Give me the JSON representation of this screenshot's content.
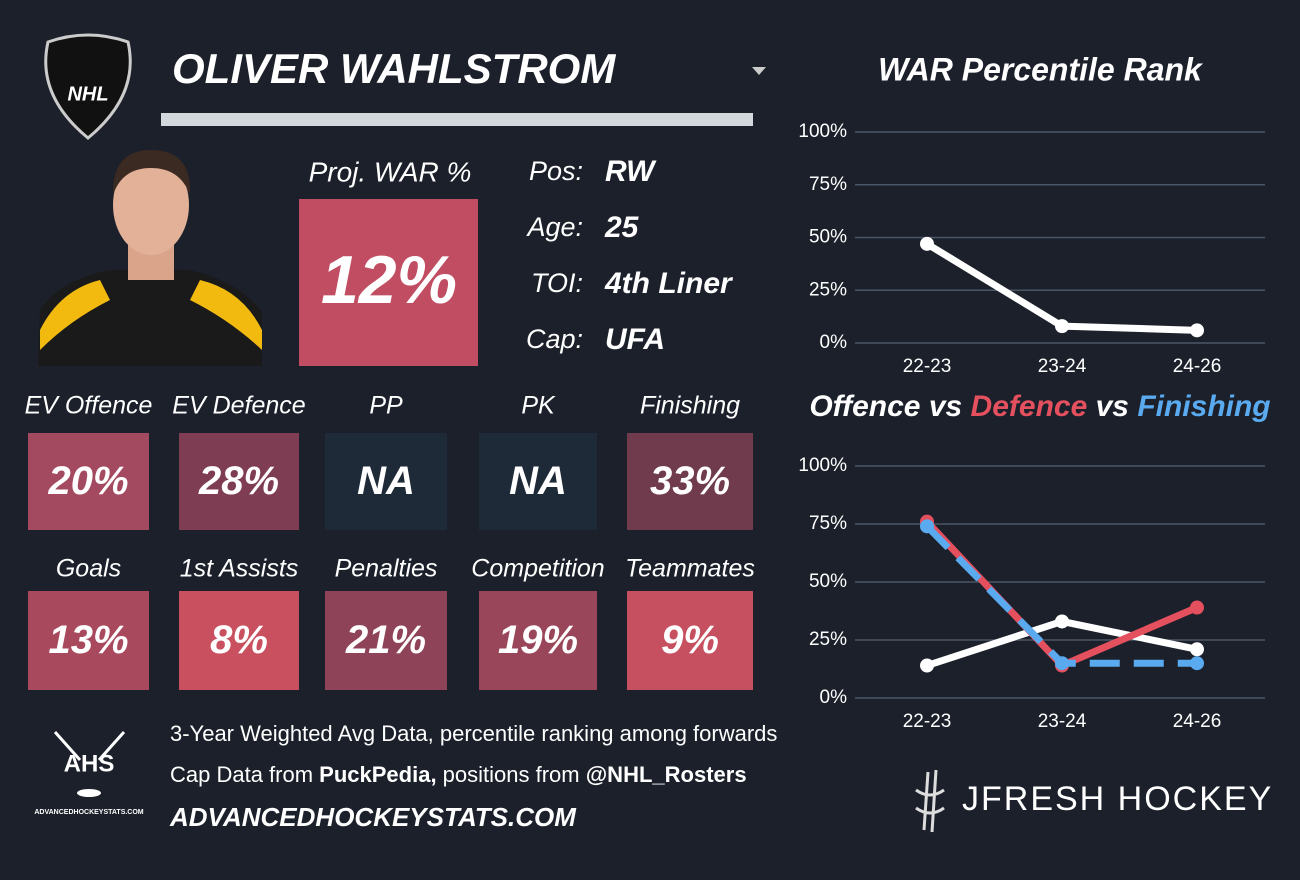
{
  "header": {
    "logo": "NHL",
    "name": "OLIVER WAHLSTROM"
  },
  "projection": {
    "label": "Proj. WAR %",
    "value": "12%",
    "color": "#c04d62"
  },
  "info": [
    {
      "label": "Pos:",
      "value": "RW"
    },
    {
      "label": "Age:",
      "value": "25"
    },
    {
      "label": "TOI:",
      "value": "4th Liner"
    },
    {
      "label": "Cap:",
      "value": "UFA"
    }
  ],
  "tiles": [
    {
      "label": "EV Offence",
      "value": "20%",
      "color": "#a44a60"
    },
    {
      "label": "EV Defence",
      "value": "28%",
      "color": "#7e3d52"
    },
    {
      "label": "PP",
      "value": "NA",
      "color": "#1f2a38"
    },
    {
      "label": "PK",
      "value": "NA",
      "color": "#1f2a38"
    },
    {
      "label": "Finishing",
      "value": "33%",
      "color": "#6f3b4d"
    },
    {
      "label": "Goals",
      "value": "13%",
      "color": "#a9495e"
    },
    {
      "label": "1st Assists",
      "value": "8%",
      "color": "#c9505f"
    },
    {
      "label": "Penalties",
      "value": "21%",
      "color": "#8f4358"
    },
    {
      "label": "Competition",
      "value": "19%",
      "color": "#9a465a"
    },
    {
      "label": "Teammates",
      "value": "9%",
      "color": "#c6505f"
    }
  ],
  "footer": {
    "logo": "AHS",
    "logo_caption": "ADVANCEDHOCKEYSTATS.COM",
    "line1": "3-Year Weighted Avg Data, percentile ranking among forwards",
    "line2": [
      "Cap Data from ",
      "PuckPedia,",
      " positions from ",
      "@NHL_Rosters"
    ],
    "site": "ADVANCEDHOCKEYSTATS.COM",
    "brand": "JFRESH HOCKEY"
  },
  "chart_data": [
    {
      "type": "line",
      "title": "WAR Percentile Rank",
      "categories": [
        "22-23",
        "23-24",
        "24-26"
      ],
      "series": [
        {
          "color": "#ffffff",
          "values": [
            47,
            8,
            6
          ]
        }
      ],
      "ylim": [
        0,
        100
      ],
      "yticks": [
        {
          "value": 0,
          "label": "0%"
        },
        {
          "value": 25,
          "label": "25%"
        },
        {
          "value": 50,
          "label": "50%"
        },
        {
          "value": 75,
          "label": "75%"
        },
        {
          "value": 100,
          "label": "100%"
        }
      ],
      "grid": true
    },
    {
      "type": "line",
      "title_joiner": "vs",
      "categories": [
        "22-23",
        "23-24",
        "24-26"
      ],
      "series": [
        {
          "name": "Offence",
          "color": "#ffffff",
          "values": [
            14,
            33,
            21
          ]
        },
        {
          "name": "Defence",
          "color": "#e5505f",
          "values": [
            76,
            14,
            39
          ]
        },
        {
          "name": "Finishing",
          "color": "#5aaaf0",
          "dashed": true,
          "values": [
            74,
            15,
            15
          ]
        }
      ],
      "ylim": [
        0,
        100
      ],
      "yticks": [
        {
          "value": 0,
          "label": "0%"
        },
        {
          "value": 25,
          "label": "25%"
        },
        {
          "value": 50,
          "label": "50%"
        },
        {
          "value": 75,
          "label": "75%"
        },
        {
          "value": 100,
          "label": "100%"
        }
      ],
      "grid": true
    }
  ]
}
